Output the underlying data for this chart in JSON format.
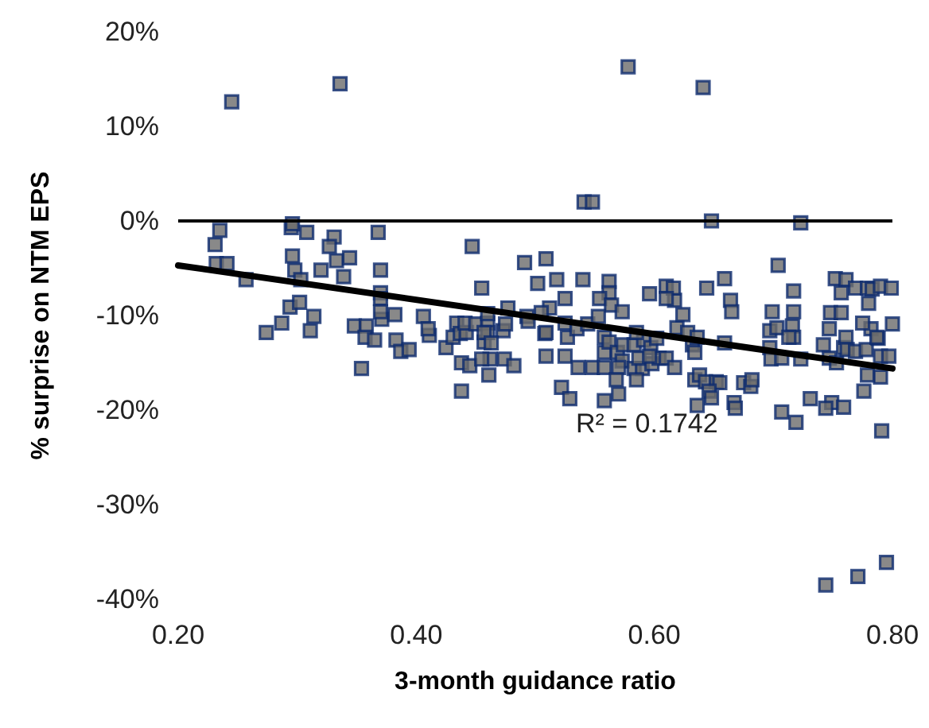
{
  "chart_data": {
    "type": "scatter",
    "xlabel": "3-month guidance ratio",
    "ylabel": "% surprise on NTM EPS",
    "xlim": [
      0.2,
      0.8
    ],
    "xticks": [
      {
        "value": 0.2,
        "label": "0.20"
      },
      {
        "value": 0.4,
        "label": "0.40"
      },
      {
        "value": 0.6,
        "label": "0.60"
      },
      {
        "value": 0.8,
        "label": "0.80"
      }
    ],
    "ylim": [
      -40,
      20
    ],
    "yticks": [
      {
        "value": -40,
        "label": "-40%"
      },
      {
        "value": -30,
        "label": "-30%"
      },
      {
        "value": -20,
        "label": "-20%"
      },
      {
        "value": -10,
        "label": "-10%"
      },
      {
        "value": 0,
        "label": "0%"
      },
      {
        "value": 10,
        "label": "10%"
      },
      {
        "value": 20,
        "label": "20%"
      }
    ],
    "grid": false,
    "marker": "square",
    "ref_lines": [
      {
        "axis": "y",
        "value": 0,
        "color": "#000000"
      }
    ],
    "annotations": [
      "R² = 0.1742"
    ],
    "series": [
      {
        "color": "#6b6b6b",
        "x": [
          0.245,
          0.336,
          0.578,
          0.641,
          0.541,
          0.548,
          0.648,
          0.723,
          0.235,
          0.231,
          0.232,
          0.241,
          0.257,
          0.296,
          0.295,
          0.296,
          0.308,
          0.331,
          0.327,
          0.333,
          0.344,
          0.339,
          0.298,
          0.303,
          0.32,
          0.368,
          0.37,
          0.37,
          0.447,
          0.455,
          0.491,
          0.509,
          0.502,
          0.518,
          0.54,
          0.562,
          0.562,
          0.61,
          0.617,
          0.596,
          0.644,
          0.659,
          0.704,
          0.717,
          0.752,
          0.761,
          0.769,
          0.779,
          0.783,
          0.79,
          0.799,
          0.78,
          0.748,
          0.757,
          0.274,
          0.287,
          0.294,
          0.302,
          0.314,
          0.311,
          0.354,
          0.348,
          0.358,
          0.357,
          0.365,
          0.371,
          0.382,
          0.383,
          0.387,
          0.37,
          0.37,
          0.394,
          0.411,
          0.406,
          0.41,
          0.425,
          0.434,
          0.431,
          0.437,
          0.442,
          0.438,
          0.441,
          0.45,
          0.457,
          0.445,
          0.462,
          0.46,
          0.46,
          0.473,
          0.438,
          0.554,
          0.564,
          0.573,
          0.525,
          0.512,
          0.505,
          0.477,
          0.46,
          0.457,
          0.463,
          0.475,
          0.493,
          0.508,
          0.525,
          0.527,
          0.535,
          0.544,
          0.553,
          0.558,
          0.558,
          0.562,
          0.569,
          0.573,
          0.574,
          0.583,
          0.583,
          0.59,
          0.587,
          0.591,
          0.597,
          0.598,
          0.604,
          0.602,
          0.61,
          0.617,
          0.619,
          0.628,
          0.632,
          0.634,
          0.636,
          0.634,
          0.638,
          0.643,
          0.652,
          0.659,
          0.655,
          0.646,
          0.675,
          0.681,
          0.667,
          0.682,
          0.697,
          0.697,
          0.698,
          0.707,
          0.723,
          0.716,
          0.717,
          0.742,
          0.747,
          0.747,
          0.753,
          0.759,
          0.761,
          0.762,
          0.769,
          0.778,
          0.782,
          0.788,
          0.79,
          0.797,
          0.8,
          0.79,
          0.776,
          0.779,
          0.749,
          0.759,
          0.719,
          0.707,
          0.731,
          0.744,
          0.791,
          0.668,
          0.636,
          0.648,
          0.744,
          0.771,
          0.795,
          0.616,
          0.61,
          0.624,
          0.664,
          0.665,
          0.699,
          0.717,
          0.703,
          0.713,
          0.757,
          0.775,
          0.787,
          0.494,
          0.509,
          0.509,
          0.525,
          0.536,
          0.548,
          0.558,
          0.57,
          0.568,
          0.585,
          0.522,
          0.529,
          0.558,
          0.57,
          0.585,
          0.596,
          0.461,
          0.455,
          0.474,
          0.482
        ],
        "values": [
          12.6,
          14.5,
          16.3,
          14.1,
          2.0,
          2.0,
          0,
          -0.2,
          -1.0,
          -2.5,
          -4.5,
          -4.5,
          -6.2,
          -3.7,
          -0.7,
          -0.3,
          -1.2,
          -1.7,
          -2.7,
          -4.2,
          -3.9,
          -5.9,
          -5.2,
          -6.2,
          -5.2,
          -1.2,
          -5.2,
          -7.6,
          -2.7,
          -7.1,
          -4.4,
          -4.0,
          -6.6,
          -6.2,
          -6.2,
          -6.4,
          -7.6,
          -6.9,
          -8.4,
          -7.7,
          -7.1,
          -6.1,
          -4.7,
          -7.4,
          -6.1,
          -6.2,
          -7.1,
          -7.1,
          -7.2,
          -6.9,
          -7.1,
          -8.7,
          -9.7,
          -9.7,
          -11.8,
          -10.8,
          -9.1,
          -8.6,
          -10.1,
          -11.6,
          -15.6,
          -11.1,
          -11.1,
          -12.3,
          -12.6,
          -10.4,
          -9.9,
          -12.6,
          -13.8,
          -8.2,
          -9.6,
          -13.6,
          -12.1,
          -10.1,
          -11.4,
          -13.4,
          -10.8,
          -12.3,
          -11.9,
          -11.8,
          -15.0,
          -10.8,
          -10.9,
          -12.8,
          -15.3,
          -14.6,
          -10.8,
          -11.8,
          -11.6,
          -18.0,
          -8.2,
          -8.9,
          -9.6,
          -8.2,
          -9.2,
          -9.7,
          -9.2,
          -9.8,
          -11.8,
          -12.9,
          -10.9,
          -10.1,
          -11.9,
          -10.8,
          -12.3,
          -11.4,
          -10.9,
          -10.1,
          -12.3,
          -13.9,
          -12.8,
          -13.9,
          -14.8,
          -13.1,
          -13.1,
          -15.6,
          -15.6,
          -14.5,
          -12.6,
          -13.4,
          -15.1,
          -14.5,
          -12.4,
          -14.5,
          -15.5,
          -11.3,
          -11.8,
          -13.1,
          -13.9,
          -12.3,
          -16.8,
          -16.3,
          -17.0,
          -17.0,
          -12.9,
          -17.1,
          -18.0,
          -17.1,
          -17.5,
          -19.2,
          -16.8,
          -13.4,
          -11.6,
          -14.6,
          -14.5,
          -14.6,
          -11.1,
          -12.3,
          -13.1,
          -11.4,
          -14.5,
          -15.0,
          -13.4,
          -12.3,
          -13.6,
          -13.8,
          -13.6,
          -11.4,
          -12.4,
          -14.3,
          -14.3,
          -10.9,
          -16.5,
          -18.0,
          -16.3,
          -19.2,
          -19.7,
          -21.3,
          -20.2,
          -18.8,
          -19.8,
          -22.2,
          -19.8,
          -19.5,
          -18.7,
          -38.5,
          -37.6,
          -36.1,
          -7.1,
          -8.2,
          -9.9,
          -8.4,
          -9.6,
          -9.6,
          -9.6,
          -11.3,
          -12.3,
          -7.6,
          -10.8,
          -12.3,
          -10.6,
          -11.8,
          -14.3,
          -14.3,
          -15.5,
          -15.5,
          -15.5,
          -15.5,
          -16.8,
          -16.8,
          -17.6,
          -18.8,
          -19.0,
          -18.3,
          -11.8,
          -14.3,
          -16.3,
          -14.6,
          -14.6,
          -15.3
        ]
      },
      {
        "type": "line",
        "color": "#000000",
        "marker": "none",
        "line_style": "solid",
        "x": [
          0.2,
          0.8
        ],
        "values": [
          -4.7,
          -15.6
        ]
      }
    ]
  }
}
